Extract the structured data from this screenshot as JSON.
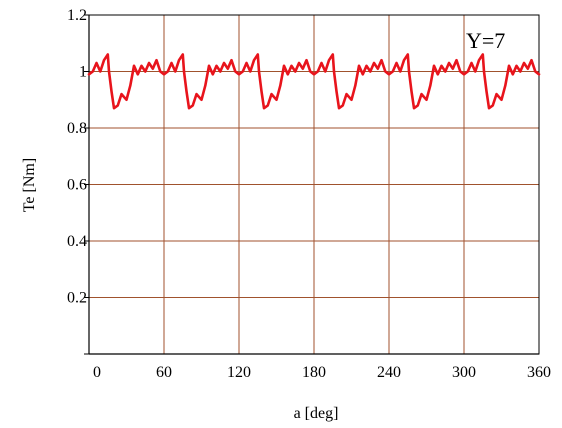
{
  "chart_data": {
    "type": "line",
    "xlabel": "a [deg]",
    "ylabel": "Te [Nm]",
    "annotation": "Y=7",
    "xlim": [
      0,
      360
    ],
    "ylim": [
      0,
      1.2
    ],
    "xticks": [
      0,
      60,
      120,
      180,
      240,
      300,
      360
    ],
    "yticks": [
      0.2,
      0.4,
      0.6,
      0.8,
      1,
      1.2
    ],
    "xtick_labels": [
      "0",
      "60",
      "120",
      "180",
      "240",
      "300",
      "360"
    ],
    "ytick_labels": [
      "0.2",
      "0.4",
      "0.6",
      "0.8",
      "1",
      "1.2"
    ],
    "grid": true,
    "grid_color": "#a0522d",
    "series": [
      {
        "color": "#e8141c",
        "x": [
          0,
          3,
          6,
          9,
          12,
          15,
          16,
          18,
          20,
          23,
          26,
          30,
          33,
          36,
          39,
          42,
          45,
          48,
          51,
          54,
          57,
          60,
          63,
          66,
          69,
          72,
          75,
          76,
          78,
          80,
          83,
          86,
          90,
          93,
          96,
          99,
          102,
          105,
          108,
          111,
          114,
          117,
          120,
          123,
          126,
          129,
          132,
          135,
          136,
          138,
          140,
          143,
          146,
          150,
          153,
          156,
          159,
          162,
          165,
          168,
          171,
          174,
          177,
          180,
          183,
          186,
          189,
          192,
          195,
          196,
          198,
          200,
          203,
          206,
          210,
          213,
          216,
          219,
          222,
          225,
          228,
          231,
          234,
          237,
          240,
          243,
          246,
          249,
          252,
          255,
          256,
          258,
          260,
          263,
          266,
          270,
          273,
          276,
          279,
          282,
          285,
          288,
          291,
          294,
          297,
          300,
          303,
          306,
          309,
          312,
          315,
          316,
          318,
          320,
          323,
          326,
          330,
          333,
          336,
          339,
          342,
          345,
          348,
          351,
          354,
          357,
          360
        ],
        "values": [
          0.99,
          1.0,
          1.03,
          1.0,
          1.04,
          1.06,
          1.0,
          0.93,
          0.87,
          0.88,
          0.92,
          0.9,
          0.95,
          1.02,
          0.99,
          1.02,
          1.0,
          1.03,
          1.01,
          1.04,
          1.0,
          0.99,
          1.0,
          1.03,
          1.0,
          1.04,
          1.06,
          1.0,
          0.93,
          0.87,
          0.88,
          0.92,
          0.9,
          0.95,
          1.02,
          0.99,
          1.02,
          1.0,
          1.03,
          1.01,
          1.04,
          1.0,
          0.99,
          1.0,
          1.03,
          1.0,
          1.04,
          1.06,
          1.0,
          0.93,
          0.87,
          0.88,
          0.92,
          0.9,
          0.95,
          1.02,
          0.99,
          1.02,
          1.0,
          1.03,
          1.01,
          1.04,
          1.0,
          0.99,
          1.0,
          1.03,
          1.0,
          1.04,
          1.06,
          1.0,
          0.93,
          0.87,
          0.88,
          0.92,
          0.9,
          0.95,
          1.02,
          0.99,
          1.02,
          1.0,
          1.03,
          1.01,
          1.04,
          1.0,
          0.99,
          1.0,
          1.03,
          1.0,
          1.04,
          1.06,
          1.0,
          0.93,
          0.87,
          0.88,
          0.92,
          0.9,
          0.95,
          1.02,
          0.99,
          1.02,
          1.0,
          1.03,
          1.01,
          1.04,
          1.0,
          0.99,
          1.0,
          1.03,
          1.0,
          1.04,
          1.06,
          1.0,
          0.93,
          0.87,
          0.88,
          0.92,
          0.9,
          0.95,
          1.02,
          0.99,
          1.02,
          1.0,
          1.03,
          1.01,
          1.04,
          1.0,
          0.99
        ]
      }
    ]
  }
}
